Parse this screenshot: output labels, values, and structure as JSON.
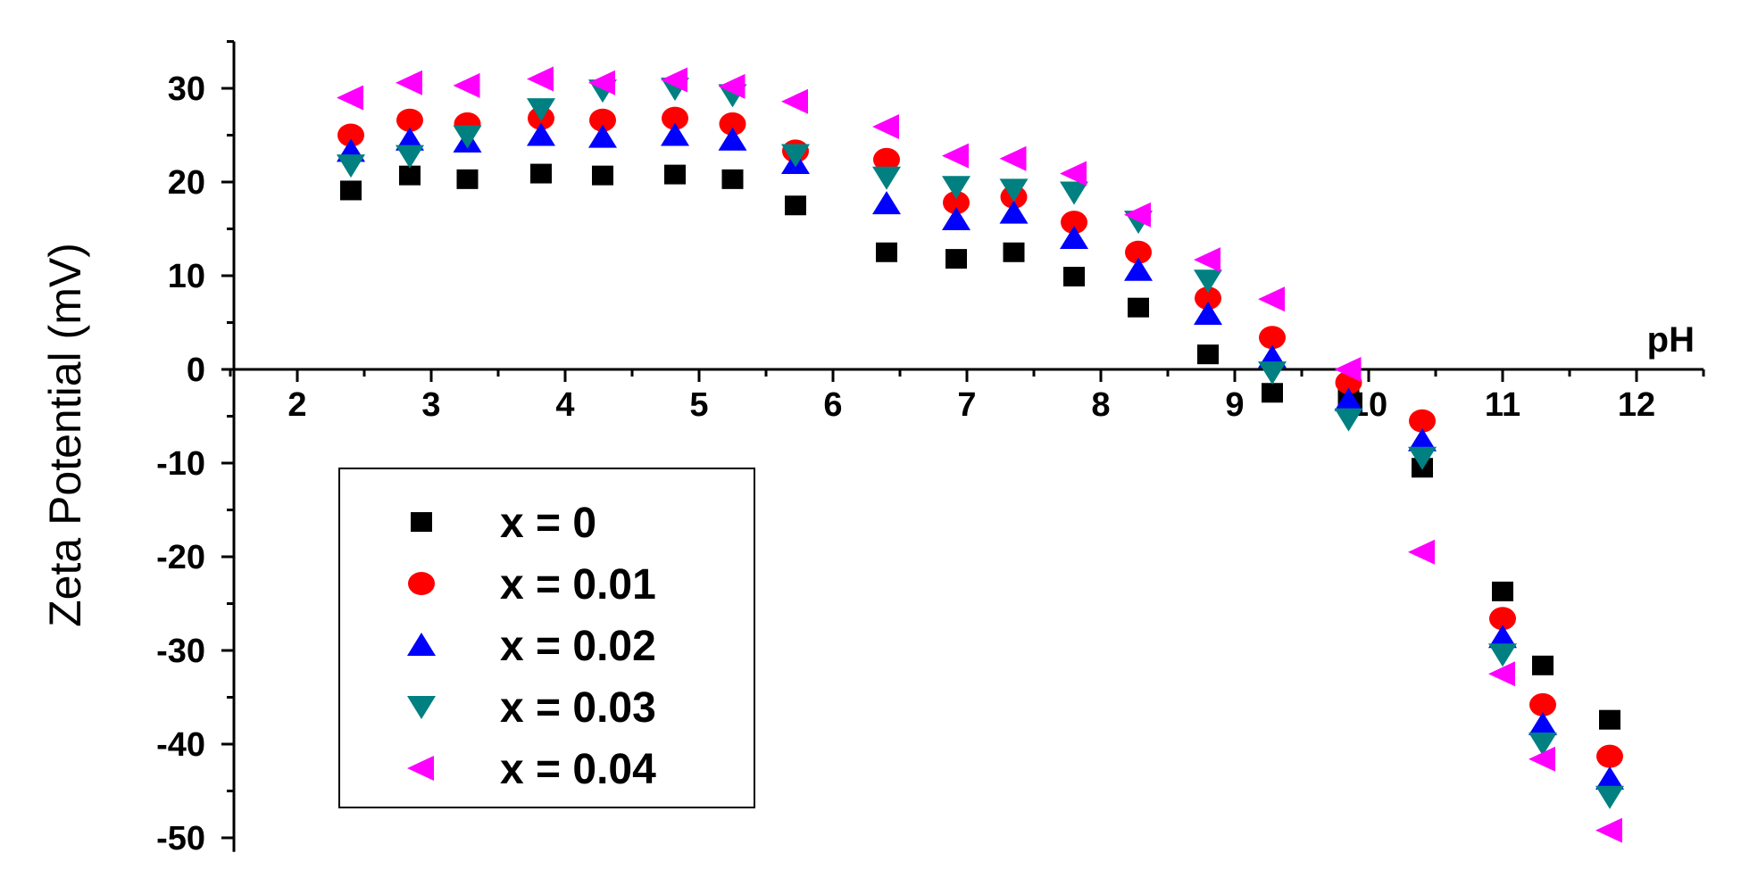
{
  "chart_data": {
    "type": "scatter",
    "xlabel": "pH",
    "ylabel": "Zeta Potential (mV)",
    "xlim": [
      1.4,
      12.5
    ],
    "ylim": [
      -50,
      35
    ],
    "x_ticks": [
      2,
      3,
      4,
      5,
      6,
      7,
      8,
      9,
      10,
      11,
      12
    ],
    "y_ticks": [
      30,
      20,
      10,
      0,
      -10,
      -20,
      -30,
      -40,
      -50
    ],
    "x_tick_labels": [
      "2",
      "3",
      "4",
      "5",
      "6",
      "7",
      "8",
      "9",
      "10",
      "11",
      "12"
    ],
    "y_tick_labels": [
      "30",
      "20",
      "10",
      "0",
      "-10",
      "-20",
      "-30",
      "-40",
      "-50"
    ],
    "legend_position": "left",
    "series": [
      {
        "name": "x = 0",
        "marker": "square",
        "color": "#000000",
        "x": [
          2.4,
          2.84,
          3.27,
          3.82,
          4.28,
          4.82,
          5.25,
          5.72,
          6.4,
          6.92,
          7.35,
          7.8,
          8.28,
          8.8,
          9.28,
          9.85,
          10.4,
          11.0,
          11.3,
          11.8
        ],
        "y": [
          19.1,
          20.7,
          20.3,
          20.9,
          20.7,
          20.8,
          20.3,
          17.5,
          12.5,
          11.8,
          12.5,
          9.9,
          6.6,
          1.6,
          -2.5,
          -3.1,
          -10.5,
          -23.7,
          -31.6,
          -37.4
        ]
      },
      {
        "name": "x = 0.01",
        "marker": "circle",
        "color": "#ff0000",
        "x": [
          2.4,
          2.84,
          3.27,
          3.82,
          4.28,
          4.82,
          5.25,
          5.72,
          6.4,
          6.92,
          7.35,
          7.8,
          8.28,
          8.8,
          9.28,
          9.85,
          10.4,
          11.0,
          11.3,
          11.8
        ],
        "y": [
          25.0,
          26.6,
          26.2,
          26.8,
          26.6,
          26.8,
          26.2,
          23.3,
          22.4,
          17.8,
          18.4,
          15.7,
          12.5,
          7.6,
          3.4,
          -1.4,
          -5.5,
          -26.6,
          -35.8,
          -41.3
        ]
      },
      {
        "name": "x = 0.02",
        "marker": "triangle-up",
        "color": "#0000ff",
        "x": [
          2.4,
          2.84,
          3.27,
          3.82,
          4.28,
          4.82,
          5.25,
          5.72,
          6.4,
          6.92,
          7.35,
          7.8,
          8.28,
          8.8,
          9.28,
          9.85,
          10.4,
          11.0,
          11.3,
          11.8
        ],
        "y": [
          23.3,
          24.5,
          24.3,
          25.0,
          24.8,
          25.0,
          24.5,
          22.0,
          17.7,
          16.0,
          16.7,
          14.0,
          10.6,
          5.9,
          1.3,
          -3.3,
          -7.6,
          -28.6,
          -37.9,
          -43.7
        ]
      },
      {
        "name": "x = 0.03",
        "marker": "triangle-down",
        "color": "#008080",
        "x": [
          2.4,
          2.84,
          3.27,
          3.82,
          4.28,
          4.82,
          5.25,
          5.72,
          6.4,
          6.92,
          7.35,
          7.8,
          8.28,
          8.8,
          9.28,
          9.85,
          10.4,
          11.0,
          11.3,
          11.8
        ],
        "y": [
          21.8,
          22.8,
          24.9,
          27.8,
          29.8,
          30.0,
          29.3,
          22.9,
          20.5,
          19.5,
          19.2,
          18.9,
          15.8,
          9.5,
          -0.3,
          -5.3,
          -9.4,
          -30.4,
          -39.9,
          -45.6
        ]
      },
      {
        "name": "x = 0.04",
        "marker": "triangle-left",
        "color": "#ff00ff",
        "x": [
          2.4,
          2.84,
          3.27,
          3.82,
          4.28,
          4.82,
          5.25,
          5.72,
          6.4,
          6.92,
          7.35,
          7.8,
          8.28,
          8.8,
          9.28,
          9.85,
          10.4,
          11.0,
          11.3,
          11.8
        ],
        "y": [
          29.0,
          30.6,
          30.3,
          31.0,
          30.6,
          30.9,
          30.2,
          28.6,
          25.9,
          22.8,
          22.5,
          20.9,
          16.5,
          11.7,
          7.5,
          0.0,
          -19.5,
          -32.5,
          -41.6,
          -49.2
        ]
      }
    ]
  }
}
